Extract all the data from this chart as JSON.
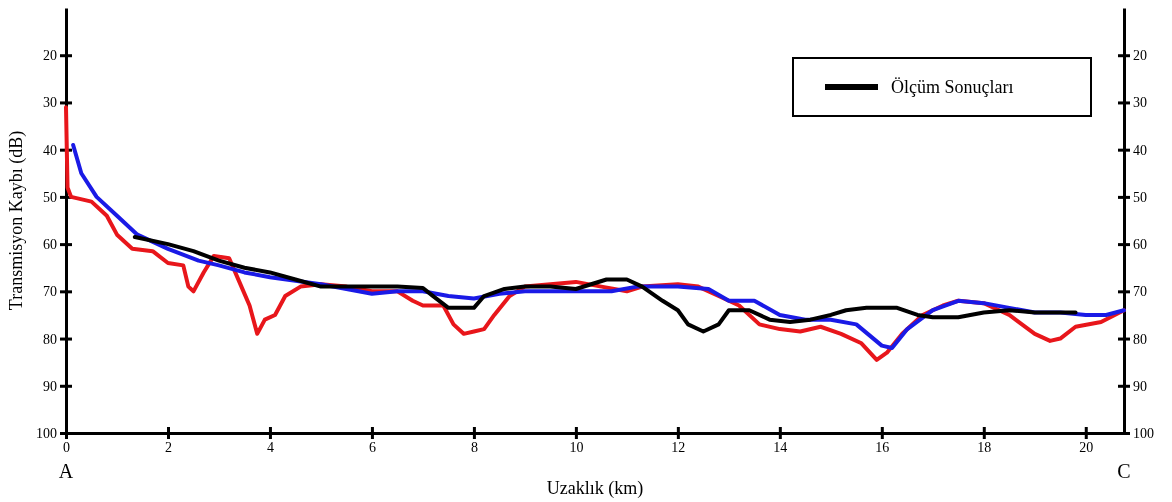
{
  "chart_data": {
    "type": "line",
    "xlabel": "Uzaklık (km)",
    "ylabel": "Transmisyon Kaybı (dB)",
    "xlim": [
      0,
      20.75
    ],
    "xticks": [
      0,
      2,
      4,
      6,
      8,
      10,
      12,
      14,
      16,
      18,
      20
    ],
    "ylim": [
      100,
      10
    ],
    "yticks": [
      20,
      30,
      40,
      50,
      60,
      70,
      80,
      90,
      100
    ],
    "y2lim": [
      100,
      10
    ],
    "y2ticks": [
      20,
      30,
      40,
      50,
      60,
      70,
      80,
      90,
      100
    ],
    "legend": "top right",
    "grid": false,
    "annotations": [
      "A",
      "C"
    ],
    "series": [
      {
        "color": "#e8161b",
        "x": [
          0,
          0.03,
          0.1,
          0.5,
          0.8,
          1.0,
          1.3,
          1.7,
          2.0,
          2.3,
          2.4,
          2.5,
          2.7,
          2.9,
          3.2,
          3.4,
          3.6,
          3.75,
          3.9,
          4.1,
          4.3,
          4.6,
          5.0,
          5.5,
          6.0,
          6.5,
          6.8,
          7.0,
          7.4,
          7.6,
          7.8,
          8.0,
          8.2,
          8.4,
          8.7,
          9.0,
          9.5,
          10.0,
          10.5,
          11.0,
          11.3,
          12.0,
          12.4,
          12.8,
          13.2,
          13.6,
          14.0,
          14.4,
          14.8,
          15.2,
          15.6,
          15.9,
          16.1,
          16.4,
          16.8,
          17.2,
          17.5,
          18.0,
          18.5,
          19.0,
          19.3,
          19.5,
          19.8,
          20.3,
          20.75
        ],
        "values": [
          31,
          48,
          50,
          51,
          54,
          58,
          61,
          61.5,
          64,
          64.5,
          69,
          70,
          66,
          62.5,
          63,
          68,
          73,
          79,
          76,
          75,
          71,
          69,
          68.5,
          69,
          70,
          70,
          72,
          73,
          73,
          77,
          79,
          78.5,
          78,
          75,
          71,
          69,
          68.5,
          68,
          69,
          70,
          69,
          68.5,
          69,
          71,
          73,
          77,
          78,
          78.5,
          77.5,
          79,
          81,
          84.5,
          83,
          79,
          75,
          73,
          72,
          72.5,
          75,
          79,
          80.5,
          80,
          77.5,
          76.5,
          74
        ]
      },
      {
        "color": "#1a1ae6",
        "x": [
          0.14,
          0.3,
          0.6,
          1.0,
          1.4,
          2.0,
          2.6,
          3.0,
          3.5,
          4.0,
          5.0,
          5.5,
          6.0,
          6.5,
          7.0,
          7.5,
          8.0,
          8.5,
          9.0,
          10.0,
          10.7,
          11.2,
          12.0,
          12.6,
          13.0,
          13.5,
          14.0,
          14.5,
          15.0,
          15.5,
          16.0,
          16.2,
          16.5,
          17.0,
          17.5,
          18.0,
          18.5,
          19.0,
          19.5,
          20.0,
          20.4,
          20.75
        ],
        "values": [
          39,
          45,
          50,
          54,
          58,
          61,
          63.5,
          64.5,
          66,
          67,
          68.5,
          69.5,
          70.5,
          70,
          70,
          71,
          71.5,
          70.5,
          70,
          70,
          70,
          69,
          69,
          69.5,
          72,
          72,
          75,
          76,
          76,
          77,
          81.5,
          82,
          78,
          74,
          72,
          72.5,
          73.5,
          74.5,
          74.5,
          75,
          75,
          74
        ]
      },
      {
        "name": "Ölçüm Sonuçları",
        "color": "#000000",
        "x": [
          1.35,
          2.0,
          2.5,
          3.0,
          3.5,
          4.0,
          4.5,
          5.0,
          6.0,
          6.5,
          7.0,
          7.2,
          7.5,
          8.0,
          8.2,
          8.6,
          9.0,
          9.5,
          10.0,
          10.3,
          10.6,
          11.0,
          11.3,
          11.7,
          12.0,
          12.2,
          12.5,
          12.8,
          13.0,
          13.4,
          13.8,
          14.2,
          14.6,
          15.0,
          15.3,
          15.7,
          16.3,
          16.7,
          17.0,
          17.5,
          18.0,
          18.5,
          19.0,
          19.8
        ],
        "values": [
          58.5,
          60,
          61.5,
          63.5,
          65,
          66,
          67.5,
          69,
          69,
          69,
          69.3,
          71,
          73.5,
          73.5,
          71,
          69.5,
          69,
          69,
          69.5,
          68.5,
          67.5,
          67.5,
          69,
          72,
          74,
          77,
          78.5,
          77,
          74,
          74,
          76,
          76.5,
          76,
          75,
          74,
          73.5,
          73.5,
          75,
          75.5,
          75.5,
          74.5,
          74,
          74.5,
          74.5
        ]
      }
    ]
  }
}
